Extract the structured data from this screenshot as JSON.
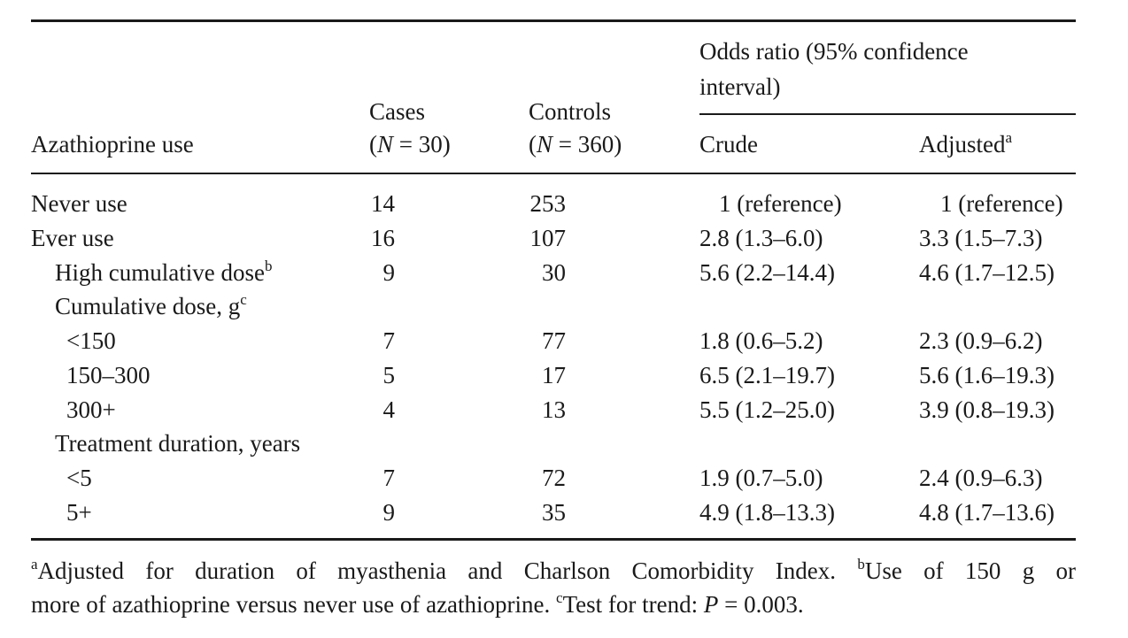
{
  "header": {
    "col1": "Azathioprine use",
    "cases_label": "Cases",
    "cases_n_open": "(",
    "cases_n_var": "N",
    "cases_n_rest": " = 30)",
    "controls_label": "Controls",
    "controls_n_open": "(",
    "controls_n_var": "N",
    "controls_n_rest": " = 360)",
    "or_line1": "Odds ratio (95% confidence",
    "or_line2": "interval)",
    "crude": "Crude",
    "adjusted": "Adjusted",
    "adjusted_sup": "a"
  },
  "rows": [
    {
      "label": "Never use",
      "label_sup": "",
      "cases": "14",
      "controls": "253",
      "crude": "1 (reference)",
      "adjusted": "1 (reference)"
    },
    {
      "label": "Ever use",
      "label_sup": "",
      "cases": "16",
      "controls": "107",
      "crude": "2.8 (1.3–6.0)",
      "adjusted": "3.3 (1.5–7.3)"
    },
    {
      "label": "High cumulative dose",
      "label_sup": "b",
      "cases": "9",
      "controls": "30",
      "crude": "5.6 (2.2–14.4)",
      "adjusted": "4.6 (1.7–12.5)"
    },
    {
      "label": "Cumulative dose, g",
      "label_sup": "c",
      "cases": "",
      "controls": "",
      "crude": "",
      "adjusted": ""
    },
    {
      "label": "<150",
      "label_sup": "",
      "cases": "7",
      "controls": "77",
      "crude": "1.8 (0.6–5.2)",
      "adjusted": "2.3 (0.9–6.2)"
    },
    {
      "label": "150–300",
      "label_sup": "",
      "cases": "5",
      "controls": "17",
      "crude": "6.5 (2.1–19.7)",
      "adjusted": "5.6 (1.6–19.3)"
    },
    {
      "label": "300+",
      "label_sup": "",
      "cases": "4",
      "controls": "13",
      "crude": "5.5 (1.2–25.0)",
      "adjusted": "3.9 (0.8–19.3)"
    },
    {
      "label": "Treatment duration, years",
      "label_sup": "",
      "cases": "",
      "controls": "",
      "crude": "",
      "adjusted": ""
    },
    {
      "label": "<5",
      "label_sup": "",
      "cases": "7",
      "controls": "72",
      "crude": "1.9 (0.7–5.0)",
      "adjusted": "2.4 (0.9–6.3)"
    },
    {
      "label": "5+",
      "label_sup": "",
      "cases": "9",
      "controls": "35",
      "crude": "4.9 (1.8–13.3)",
      "adjusted": "4.8 (1.7–13.6)"
    }
  ],
  "footnotes": {
    "a_sup": "a",
    "a_text": "Adjusted for duration of myasthenia and Charlson Comorbidity Index.",
    "b_sup": "b",
    "b_text_line1": "Use of 150 g or",
    "b_text_line2": "more of azathioprine versus never use of azathioprine.",
    "c_sup": "c",
    "c_text_pre": "Test for trend: ",
    "c_text_var": "P",
    "c_text_post": " = 0.003."
  }
}
